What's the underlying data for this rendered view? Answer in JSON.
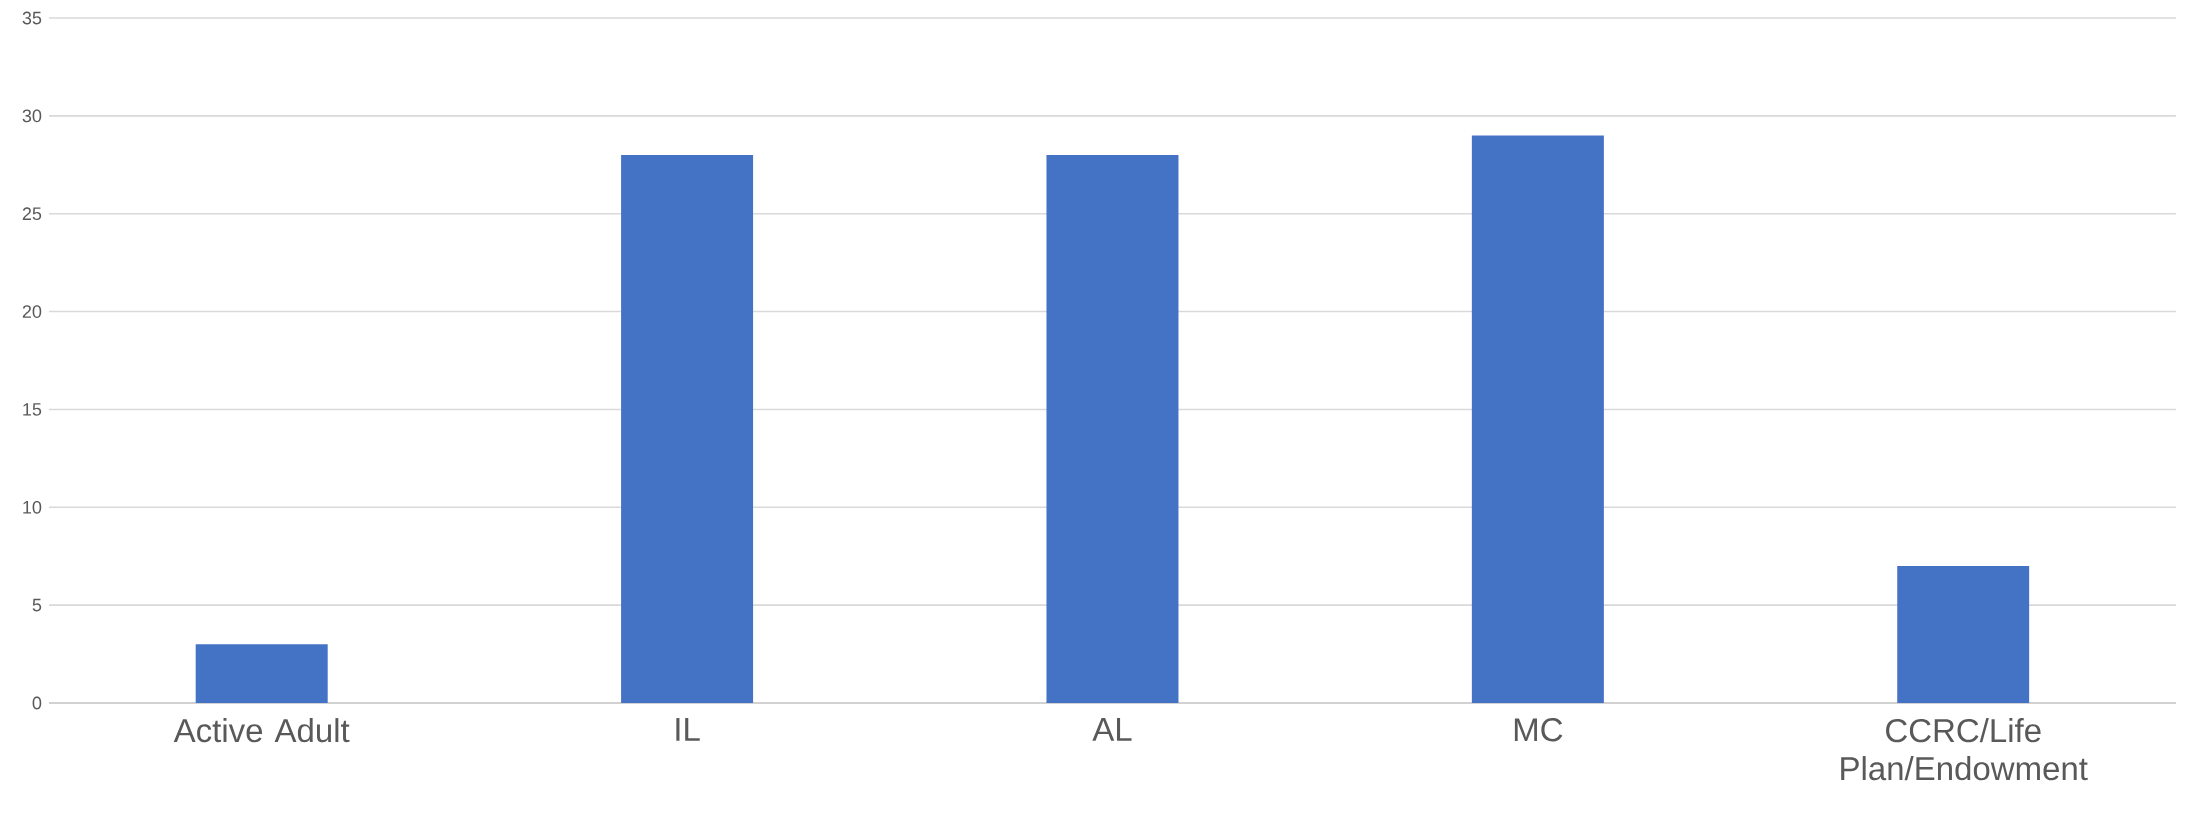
{
  "chart_data": {
    "type": "bar",
    "categories": [
      "Active Adult",
      "IL",
      "AL",
      "MC",
      "CCRC/Life Plan/Endowment"
    ],
    "values": [
      3,
      28,
      28,
      29,
      7
    ],
    "color": "#4472c4",
    "ylim": [
      0,
      35
    ],
    "yticks": [
      0,
      5,
      10,
      15,
      20,
      25,
      30,
      35
    ],
    "grid": "y",
    "legend": false
  }
}
